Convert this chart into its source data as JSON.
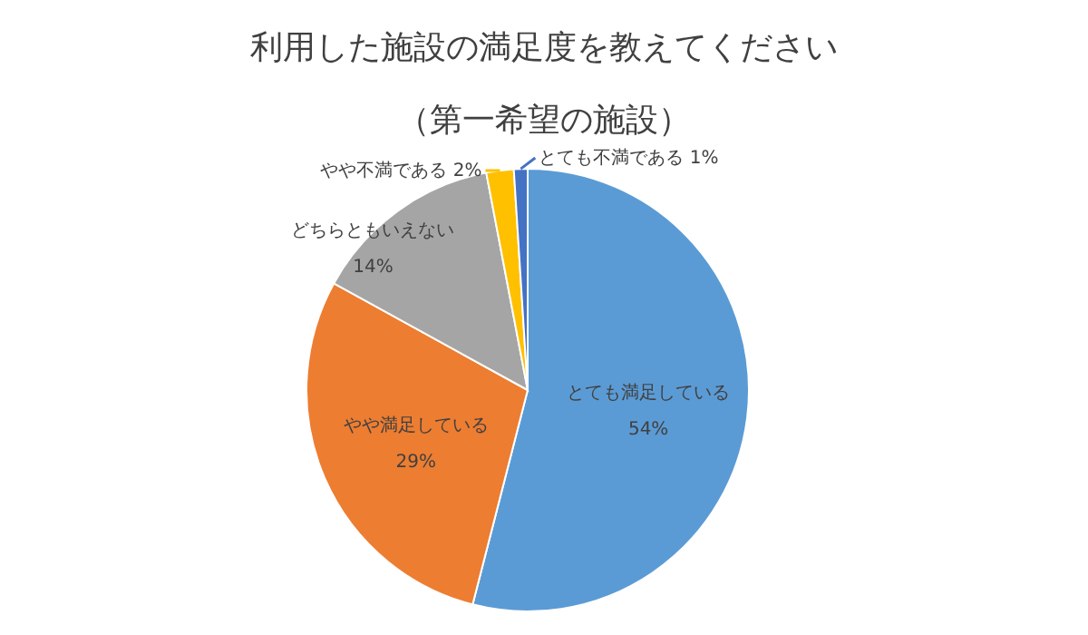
{
  "chart_data": {
    "type": "pie",
    "title": "利用した施設の満足度を教えてください",
    "subtitle": "（第一希望の施設）",
    "categories": [
      "とても満足している",
      "やや満足している",
      "どちらともいえない",
      "やや不満である",
      "とても不満である"
    ],
    "values": [
      54,
      29,
      14,
      2,
      1
    ],
    "value_labels": [
      "54%",
      "29%",
      "14%",
      "2%",
      "1%"
    ],
    "colors": [
      "#5b9bd5",
      "#ed7d31",
      "#a5a5a5",
      "#ffc000",
      "#4472c4"
    ]
  }
}
